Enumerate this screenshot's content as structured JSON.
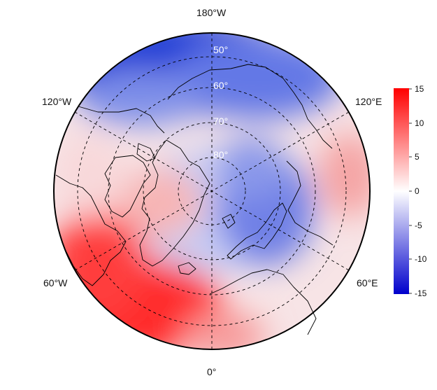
{
  "map": {
    "projection": "north-polar-stereographic",
    "longitude_labels": {
      "top": "180°W",
      "left_upper": "120°W",
      "right_upper": "120°E",
      "left_lower": "60°W",
      "right_lower": "60°E",
      "bottom": "0°"
    },
    "latitude_labels": [
      "50°",
      "60°",
      "70°",
      "80°"
    ],
    "graticule": "dashed",
    "coastlines": "black"
  },
  "colorbar": {
    "min": -15,
    "max": 15,
    "ticks": [
      "15",
      "10",
      "5",
      "0",
      "-5",
      "-10",
      "-15"
    ],
    "colors": {
      "low": "#0000cc",
      "mid": "#ffffff",
      "high": "#ff0000"
    }
  }
}
